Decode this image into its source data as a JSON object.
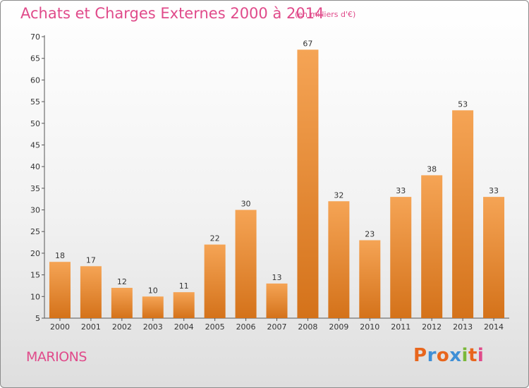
{
  "header": {
    "title": "Achats et Charges Externes 2000 à 2014",
    "subtitle": "(en milliers d'€)"
  },
  "footer": {
    "commune": "MARIONS",
    "brand_letters": [
      "P",
      "r",
      "o",
      "x",
      "i",
      "t",
      "i"
    ],
    "brand_colors": [
      "#e8661d",
      "#3f8fd6",
      "#e8661d",
      "#3f8fd6",
      "#7ab83a",
      "#e8661d",
      "#e04a8a"
    ]
  },
  "colors": {
    "bar_light": "#f5a455",
    "bar_dark": "#d4721a",
    "text": "#e04a8a"
  },
  "chart_data": {
    "type": "bar",
    "title": "Achats et Charges Externes 2000 à 2014",
    "subtitle": "(en milliers d'€)",
    "categories": [
      "2000",
      "2001",
      "2002",
      "2003",
      "2004",
      "2005",
      "2006",
      "2007",
      "2008",
      "2009",
      "2010",
      "2011",
      "2012",
      "2013",
      "2014"
    ],
    "values": [
      18,
      17,
      12,
      10,
      11,
      22,
      30,
      13,
      67,
      32,
      23,
      33,
      38,
      53,
      33
    ],
    "ylim": [
      5,
      70
    ],
    "yticks": [
      5,
      10,
      15,
      20,
      25,
      30,
      35,
      40,
      45,
      50,
      55,
      60,
      65,
      70
    ],
    "grid": false
  }
}
